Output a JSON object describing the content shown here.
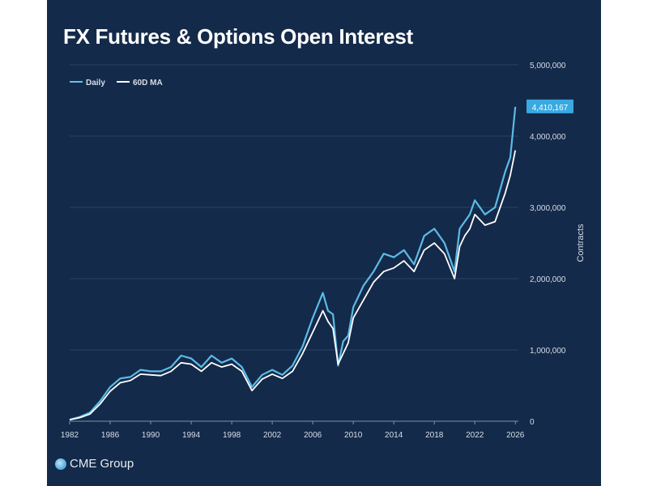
{
  "chart_data": {
    "type": "line",
    "title": "FX Futures & Options Open Interest",
    "ylabel": "Contracts",
    "xlabel": "",
    "xlim": [
      1982,
      2026.3
    ],
    "ylim": [
      0,
      5000000
    ],
    "x_ticks": [
      "1982",
      "1986",
      "1990",
      "1994",
      "1998",
      "2002",
      "2006",
      "2010",
      "2014",
      "2018",
      "2022",
      "2026"
    ],
    "y_ticks": [
      "0",
      "1,000,000",
      "2,000,000",
      "3,000,000",
      "4,000,000",
      "5,000,000"
    ],
    "y_tick_values": [
      0,
      1000000,
      2000000,
      3000000,
      4000000,
      5000000
    ],
    "grid": "horizontal",
    "legend_position": "top-left",
    "last_value_label": "4,410,167",
    "colors": {
      "background": "#142a4a",
      "daily": "#5fc3ee",
      "ma": "#ffffff",
      "grid": "#2a4366",
      "callout": "#39a9e1",
      "axis_text": "#d6dee8"
    },
    "series": [
      {
        "name": "Daily",
        "x": [
          1982.0,
          1983.0,
          1984.0,
          1985.0,
          1986.0,
          1987.0,
          1988.0,
          1989.0,
          1990.0,
          1991.0,
          1992.0,
          1993.0,
          1994.0,
          1995.0,
          1996.0,
          1997.0,
          1998.0,
          1999.0,
          2000.0,
          2001.0,
          2002.0,
          2003.0,
          2004.0,
          2005.0,
          2006.0,
          2007.0,
          2007.5,
          2008.0,
          2008.5,
          2009.0,
          2009.5,
          2010.0,
          2011.0,
          2012.0,
          2013.0,
          2014.0,
          2015.0,
          2016.0,
          2017.0,
          2018.0,
          2019.0,
          2020.0,
          2020.5,
          2021.0,
          2021.5,
          2022.0,
          2023.0,
          2024.0,
          2025.0,
          2025.5,
          2026.0
        ],
        "values": [
          20000,
          60000,
          120000,
          280000,
          480000,
          600000,
          620000,
          720000,
          700000,
          700000,
          760000,
          920000,
          880000,
          760000,
          920000,
          820000,
          880000,
          760000,
          480000,
          650000,
          720000,
          650000,
          780000,
          1050000,
          1450000,
          1800000,
          1550000,
          1500000,
          780000,
          1120000,
          1200000,
          1600000,
          1900000,
          2100000,
          2350000,
          2300000,
          2400000,
          2200000,
          2600000,
          2700000,
          2500000,
          2100000,
          2700000,
          2800000,
          2900000,
          3100000,
          2900000,
          3000000,
          3500000,
          3700000,
          4410167
        ]
      },
      {
        "name": "60D MA",
        "x": [
          1982.0,
          1983.0,
          1984.0,
          1985.0,
          1986.0,
          1987.0,
          1988.0,
          1989.0,
          1990.0,
          1991.0,
          1992.0,
          1993.0,
          1994.0,
          1995.0,
          1996.0,
          1997.0,
          1998.0,
          1999.0,
          2000.0,
          2001.0,
          2002.0,
          2003.0,
          2004.0,
          2005.0,
          2006.0,
          2007.0,
          2007.5,
          2008.0,
          2008.5,
          2009.0,
          2009.5,
          2010.0,
          2011.0,
          2012.0,
          2013.0,
          2014.0,
          2015.0,
          2016.0,
          2017.0,
          2018.0,
          2019.0,
          2020.0,
          2020.5,
          2021.0,
          2021.5,
          2022.0,
          2023.0,
          2024.0,
          2025.0,
          2025.5,
          2026.0
        ],
        "values": [
          20000,
          50000,
          100000,
          240000,
          420000,
          540000,
          570000,
          660000,
          650000,
          640000,
          700000,
          820000,
          800000,
          700000,
          820000,
          760000,
          800000,
          700000,
          430000,
          590000,
          660000,
          600000,
          700000,
          950000,
          1250000,
          1550000,
          1400000,
          1300000,
          800000,
          950000,
          1100000,
          1450000,
          1700000,
          1950000,
          2100000,
          2150000,
          2250000,
          2100000,
          2400000,
          2500000,
          2350000,
          2000000,
          2450000,
          2600000,
          2700000,
          2900000,
          2750000,
          2800000,
          3200000,
          3450000,
          3800000
        ]
      }
    ]
  },
  "brand": {
    "name": "CME Group"
  }
}
